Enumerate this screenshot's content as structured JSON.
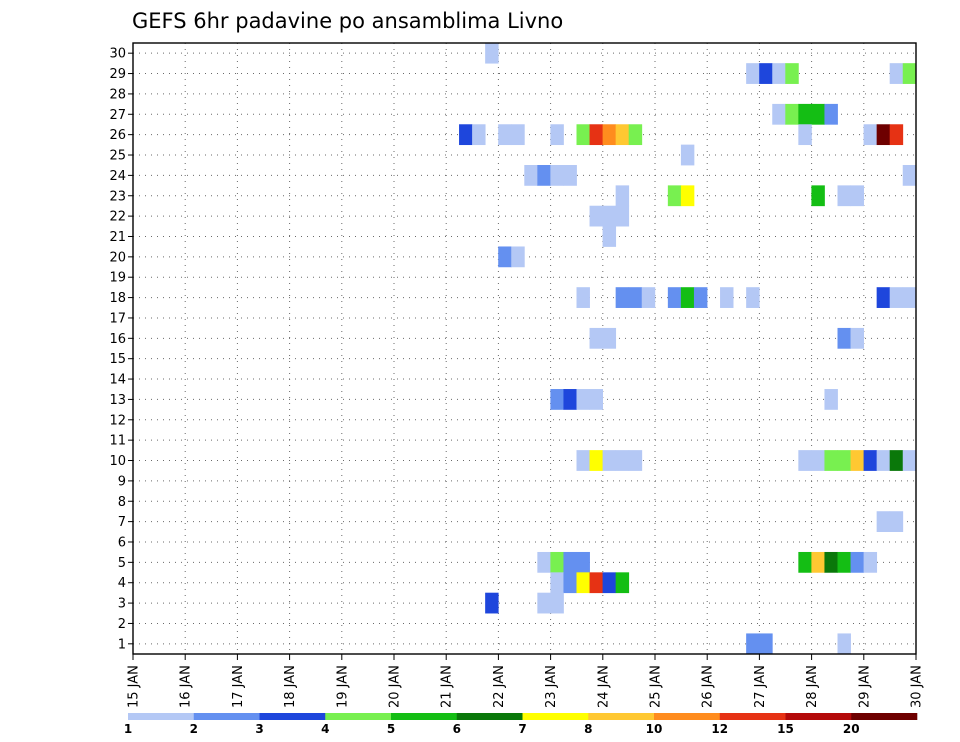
{
  "chart_data": {
    "type": "heatmap",
    "title": "GEFS 6hr padavine po ansamblima Livno",
    "x_ticks": [
      "15 JAN",
      "16 JAN",
      "17 JAN",
      "18 JAN",
      "19 JAN",
      "20 JAN",
      "21 JAN",
      "22 JAN",
      "23 JAN",
      "24 JAN",
      "25 JAN",
      "26 JAN",
      "27 JAN",
      "28 JAN",
      "29 JAN",
      "30 JAN"
    ],
    "y_ticks": [
      "1",
      "2",
      "3",
      "4",
      "5",
      "6",
      "7",
      "8",
      "9",
      "10",
      "11",
      "12",
      "13",
      "14",
      "15",
      "16",
      "17",
      "18",
      "19",
      "20",
      "21",
      "22",
      "23",
      "24",
      "25",
      "26",
      "27",
      "28",
      "29",
      "30"
    ],
    "grid": true,
    "legend_position": "bottom",
    "color_scale": {
      "labels": [
        "1",
        "2",
        "3",
        "4",
        "5",
        "6",
        "7",
        "8",
        "10",
        "12",
        "15",
        "20"
      ],
      "colors": [
        "#b4c8f5",
        "#6490f0",
        "#1e46dc",
        "#78f050",
        "#14be14",
        "#0a780a",
        "#ffff00",
        "#ffc832",
        "#ff8c1e",
        "#e63214",
        "#b40a0a",
        "#6e0000"
      ]
    },
    "cells": [
      {
        "member": 30,
        "day": 21.75,
        "cls": 0
      },
      {
        "member": 29,
        "day": 26.75,
        "cls": 0
      },
      {
        "member": 29,
        "day": 27.0,
        "cls": 2
      },
      {
        "member": 29,
        "day": 27.25,
        "cls": 0
      },
      {
        "member": 29,
        "day": 27.5,
        "cls": 3
      },
      {
        "member": 29,
        "day": 29.5,
        "cls": 0
      },
      {
        "member": 29,
        "day": 29.75,
        "cls": 3
      },
      {
        "member": 27,
        "day": 27.25,
        "cls": 0
      },
      {
        "member": 27,
        "day": 27.5,
        "cls": 3
      },
      {
        "member": 27,
        "day": 27.75,
        "cls": 4
      },
      {
        "member": 27,
        "day": 28.0,
        "cls": 4
      },
      {
        "member": 27,
        "day": 28.25,
        "cls": 1
      },
      {
        "member": 26,
        "day": 21.25,
        "cls": 2
      },
      {
        "member": 26,
        "day": 21.5,
        "cls": 0
      },
      {
        "member": 26,
        "day": 22.0,
        "cls": 0
      },
      {
        "member": 26,
        "day": 22.25,
        "cls": 0
      },
      {
        "member": 26,
        "day": 23.0,
        "cls": 0
      },
      {
        "member": 26,
        "day": 23.5,
        "cls": 3
      },
      {
        "member": 26,
        "day": 23.75,
        "cls": 9
      },
      {
        "member": 26,
        "day": 24.0,
        "cls": 8
      },
      {
        "member": 26,
        "day": 24.25,
        "cls": 7
      },
      {
        "member": 26,
        "day": 24.5,
        "cls": 3
      },
      {
        "member": 26,
        "day": 27.75,
        "cls": 0
      },
      {
        "member": 26,
        "day": 29.0,
        "cls": 0
      },
      {
        "member": 26,
        "day": 29.25,
        "cls": 11
      },
      {
        "member": 26,
        "day": 29.5,
        "cls": 9
      },
      {
        "member": 25,
        "day": 25.5,
        "cls": 0
      },
      {
        "member": 24,
        "day": 22.5,
        "cls": 0
      },
      {
        "member": 24,
        "day": 22.75,
        "cls": 1
      },
      {
        "member": 24,
        "day": 23.0,
        "cls": 0
      },
      {
        "member": 24,
        "day": 23.25,
        "cls": 0
      },
      {
        "member": 24,
        "day": 29.75,
        "cls": 0
      },
      {
        "member": 23,
        "day": 24.25,
        "cls": 0
      },
      {
        "member": 23,
        "day": 25.25,
        "cls": 3
      },
      {
        "member": 23,
        "day": 25.5,
        "cls": 6
      },
      {
        "member": 23,
        "day": 28.0,
        "cls": 4
      },
      {
        "member": 23,
        "day": 28.5,
        "cls": 0
      },
      {
        "member": 23,
        "day": 28.75,
        "cls": 0
      },
      {
        "member": 22,
        "day": 23.75,
        "cls": 0
      },
      {
        "member": 22,
        "day": 24.0,
        "cls": 0
      },
      {
        "member": 22,
        "day": 24.25,
        "cls": 0
      },
      {
        "member": 21,
        "day": 24.0,
        "cls": 0
      },
      {
        "member": 20,
        "day": 22.0,
        "cls": 1
      },
      {
        "member": 20,
        "day": 22.25,
        "cls": 0
      },
      {
        "member": 18,
        "day": 23.5,
        "cls": 0
      },
      {
        "member": 18,
        "day": 24.25,
        "cls": 1
      },
      {
        "member": 18,
        "day": 24.5,
        "cls": 1
      },
      {
        "member": 18,
        "day": 24.75,
        "cls": 0
      },
      {
        "member": 18,
        "day": 25.25,
        "cls": 1
      },
      {
        "member": 18,
        "day": 25.5,
        "cls": 4
      },
      {
        "member": 18,
        "day": 25.75,
        "cls": 1
      },
      {
        "member": 18,
        "day": 26.25,
        "cls": 0
      },
      {
        "member": 18,
        "day": 26.75,
        "cls": 0
      },
      {
        "member": 18,
        "day": 29.25,
        "cls": 2
      },
      {
        "member": 18,
        "day": 29.5,
        "cls": 0
      },
      {
        "member": 18,
        "day": 29.75,
        "cls": 0
      },
      {
        "member": 16,
        "day": 23.75,
        "cls": 0
      },
      {
        "member": 16,
        "day": 24.0,
        "cls": 0
      },
      {
        "member": 16,
        "day": 28.5,
        "cls": 1
      },
      {
        "member": 16,
        "day": 28.75,
        "cls": 0
      },
      {
        "member": 13,
        "day": 23.0,
        "cls": 1
      },
      {
        "member": 13,
        "day": 23.25,
        "cls": 2
      },
      {
        "member": 13,
        "day": 23.5,
        "cls": 0
      },
      {
        "member": 13,
        "day": 23.75,
        "cls": 0
      },
      {
        "member": 13,
        "day": 28.25,
        "cls": 0
      },
      {
        "member": 10,
        "day": 23.5,
        "cls": 0
      },
      {
        "member": 10,
        "day": 23.75,
        "cls": 6
      },
      {
        "member": 10,
        "day": 24.0,
        "cls": 0
      },
      {
        "member": 10,
        "day": 24.25,
        "cls": 0
      },
      {
        "member": 10,
        "day": 24.5,
        "cls": 0
      },
      {
        "member": 10,
        "day": 27.75,
        "cls": 0
      },
      {
        "member": 10,
        "day": 28.0,
        "cls": 0
      },
      {
        "member": 10,
        "day": 28.25,
        "cls": 3
      },
      {
        "member": 10,
        "day": 28.5,
        "cls": 3
      },
      {
        "member": 10,
        "day": 28.75,
        "cls": 7
      },
      {
        "member": 10,
        "day": 29.0,
        "cls": 2
      },
      {
        "member": 10,
        "day": 29.25,
        "cls": 0
      },
      {
        "member": 10,
        "day": 29.5,
        "cls": 5
      },
      {
        "member": 10,
        "day": 29.75,
        "cls": 0
      },
      {
        "member": 7,
        "day": 29.25,
        "cls": 0
      },
      {
        "member": 7,
        "day": 29.5,
        "cls": 0
      },
      {
        "member": 5,
        "day": 22.75,
        "cls": 0
      },
      {
        "member": 5,
        "day": 23.0,
        "cls": 3
      },
      {
        "member": 5,
        "day": 23.25,
        "cls": 1
      },
      {
        "member": 5,
        "day": 23.5,
        "cls": 1
      },
      {
        "member": 5,
        "day": 27.75,
        "cls": 4
      },
      {
        "member": 5,
        "day": 28.0,
        "cls": 7
      },
      {
        "member": 5,
        "day": 28.25,
        "cls": 5
      },
      {
        "member": 5,
        "day": 28.5,
        "cls": 4
      },
      {
        "member": 5,
        "day": 28.75,
        "cls": 1
      },
      {
        "member": 5,
        "day": 29.0,
        "cls": 0
      },
      {
        "member": 4,
        "day": 23.0,
        "cls": 0
      },
      {
        "member": 4,
        "day": 23.25,
        "cls": 1
      },
      {
        "member": 4,
        "day": 23.5,
        "cls": 6
      },
      {
        "member": 4,
        "day": 23.75,
        "cls": 9
      },
      {
        "member": 4,
        "day": 24.0,
        "cls": 2
      },
      {
        "member": 4,
        "day": 24.25,
        "cls": 4
      },
      {
        "member": 3,
        "day": 21.75,
        "cls": 2
      },
      {
        "member": 3,
        "day": 22.75,
        "cls": 0
      },
      {
        "member": 3,
        "day": 23.0,
        "cls": 0
      },
      {
        "member": 1,
        "day": 26.75,
        "cls": 1
      },
      {
        "member": 1,
        "day": 27.0,
        "cls": 1
      },
      {
        "member": 1,
        "day": 28.5,
        "cls": 0
      }
    ]
  }
}
